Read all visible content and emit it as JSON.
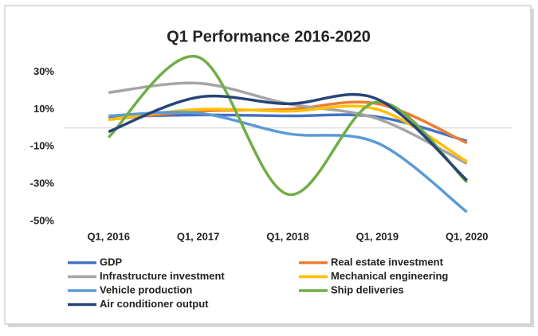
{
  "chart_data": {
    "type": "line",
    "title": "Q1 Performance 2016-2020",
    "categories": [
      "Q1, 2016",
      "Q1, 2017",
      "Q1, 2018",
      "Q1, 2019",
      "Q1, 2020"
    ],
    "series": [
      {
        "name": "GDP",
        "color": "#4472c4",
        "values": [
          6,
          7,
          6.5,
          6,
          -7
        ]
      },
      {
        "name": "Real estate investment",
        "color": "#ed7d31",
        "values": [
          4.5,
          9,
          10,
          13,
          -8
        ]
      },
      {
        "name": "Infrastructure investment",
        "color": "#a5a5a5",
        "values": [
          19,
          24,
          13,
          5,
          -19
        ]
      },
      {
        "name": "Mechanical engineering",
        "color": "#ffc000",
        "values": [
          4.5,
          10,
          9,
          10,
          -18
        ]
      },
      {
        "name": "Vehicle production",
        "color": "#5b9bd5",
        "values": [
          6.5,
          8,
          -3,
          -8,
          -45
        ]
      },
      {
        "name": "Ship deliveries",
        "color": "#70ad47",
        "values": [
          -5,
          38,
          -35.5,
          14,
          -29
        ]
      },
      {
        "name": "Air conditioner output",
        "color": "#264478",
        "values": [
          -2,
          16.5,
          13,
          15.5,
          -28
        ]
      }
    ],
    "ylim": [
      -50,
      40
    ],
    "yticks": [
      {
        "value": 30,
        "label": "30%"
      },
      {
        "value": 10,
        "label": "10%"
      },
      {
        "value": -10,
        "label": "-10%"
      },
      {
        "value": -30,
        "label": "-30%"
      },
      {
        "value": -50,
        "label": "-50%"
      }
    ],
    "grid": false
  }
}
